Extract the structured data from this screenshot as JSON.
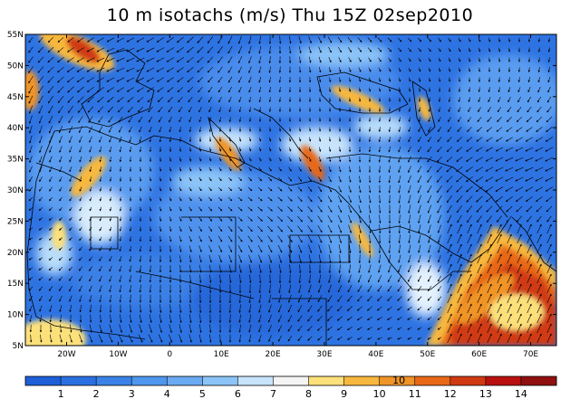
{
  "title": "10 m isotachs (m/s) Thu 15Z 02sep2010",
  "map": {
    "lon_range": [
      -28,
      75
    ],
    "lat_range": [
      5,
      55
    ],
    "lat_ticks": [
      {
        "value": 5,
        "label": "5N"
      },
      {
        "value": 10,
        "label": "10N"
      },
      {
        "value": 15,
        "label": "15N"
      },
      {
        "value": 20,
        "label": "20N"
      },
      {
        "value": 25,
        "label": "25N"
      },
      {
        "value": 30,
        "label": "30N"
      },
      {
        "value": 35,
        "label": "35N"
      },
      {
        "value": 40,
        "label": "40N"
      },
      {
        "value": 45,
        "label": "45N"
      },
      {
        "value": 50,
        "label": "50N"
      },
      {
        "value": 55,
        "label": "55N"
      }
    ],
    "lon_ticks": [
      {
        "value": -20,
        "label": "20W"
      },
      {
        "value": -10,
        "label": "10W"
      },
      {
        "value": 0,
        "label": "0"
      },
      {
        "value": 10,
        "label": "10E"
      },
      {
        "value": 20,
        "label": "20E"
      },
      {
        "value": 30,
        "label": "30E"
      },
      {
        "value": 40,
        "label": "40E"
      },
      {
        "value": 50,
        "label": "50E"
      },
      {
        "value": 60,
        "label": "60E"
      },
      {
        "value": 70,
        "label": "70E"
      }
    ]
  },
  "colorbar": {
    "labels": [
      "1",
      "2",
      "3",
      "4",
      "5",
      "6",
      "7",
      "8",
      "9",
      "10",
      "11",
      "12",
      "13",
      "14"
    ],
    "colors": [
      "#1e5fd8",
      "#2a6fe0",
      "#3a82e8",
      "#4f96ee",
      "#6aaaf2",
      "#8cc4f8",
      "#c8e4fc",
      "#f4f4f4",
      "#fce07a",
      "#f8b83e",
      "#f09428",
      "#e86818",
      "#d03a12",
      "#b8100e",
      "#901010"
    ],
    "marker": "10"
  }
}
